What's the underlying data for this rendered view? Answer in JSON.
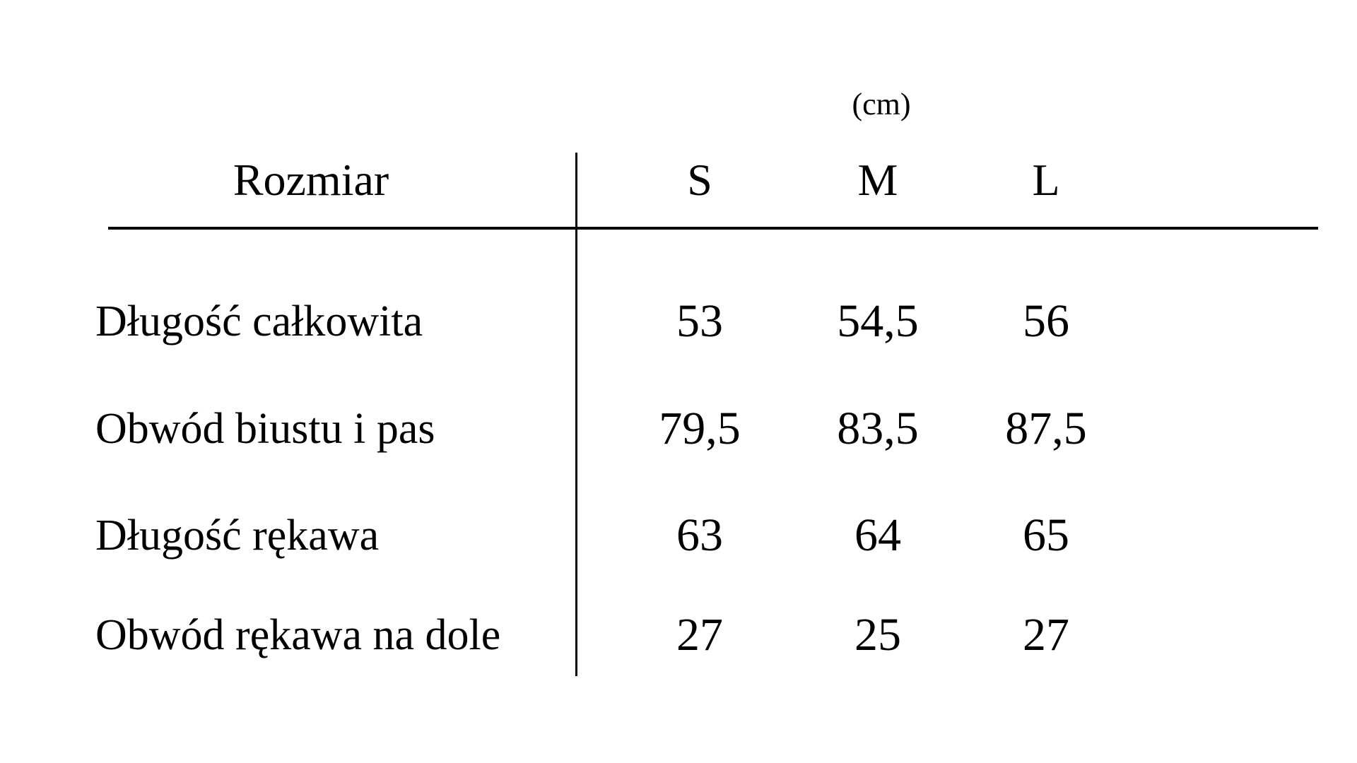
{
  "colors": {
    "background": "#ffffff",
    "text": "#000000",
    "rule": "#000000"
  },
  "chart_data": {
    "type": "table",
    "unit": "(cm)",
    "columns": [
      "Rozmiar",
      "S",
      "M",
      "L"
    ],
    "rows": [
      {
        "label": "Długość całkowita",
        "values": [
          "53",
          "54,5",
          "56"
        ]
      },
      {
        "label": "Obwód biustu i pas",
        "values": [
          "79,5",
          "83,5",
          "87,5"
        ]
      },
      {
        "label": "Długość rękawa",
        "values": [
          "63",
          "64",
          "65"
        ]
      },
      {
        "label": "Obwód rękawa na dole",
        "values": [
          "27",
          "25",
          "27"
        ]
      }
    ],
    "layout": {
      "vertical_divider": "between label column and size columns",
      "horizontal_rule": "below header row",
      "grid": "off"
    }
  }
}
